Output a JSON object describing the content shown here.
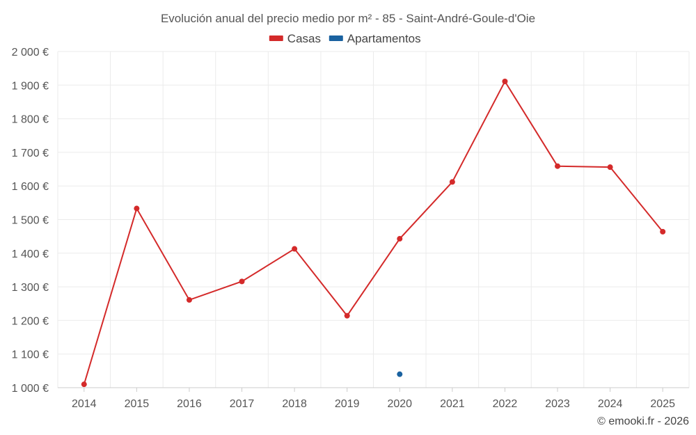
{
  "chart_data": {
    "type": "line",
    "title": "Evolución anual del precio medio por m² - 85 - Saint-André-Goule-d'Oie",
    "xlabel": "",
    "ylabel": "",
    "categories": [
      "2014",
      "2015",
      "2016",
      "2017",
      "2018",
      "2019",
      "2020",
      "2021",
      "2022",
      "2023",
      "2024",
      "2025"
    ],
    "ylim": [
      1000,
      2000
    ],
    "yticks": [
      1000,
      1100,
      1200,
      1300,
      1400,
      1500,
      1600,
      1700,
      1800,
      1900,
      2000
    ],
    "ytick_labels": [
      "1 000 €",
      "1 100 €",
      "1 200 €",
      "1 300 €",
      "1 400 €",
      "1 500 €",
      "1 600 €",
      "1 700 €",
      "1 800 €",
      "1 900 €",
      "2 000 €"
    ],
    "grid": true,
    "legend_position": "top-center",
    "series": [
      {
        "name": "Casas",
        "color": "#d42a2a",
        "values": [
          1010,
          1533,
          1261,
          1316,
          1413,
          1214,
          1443,
          1612,
          1911,
          1659,
          1656,
          1464
        ]
      },
      {
        "name": "Apartamentos",
        "color": "#1a62a0",
        "values": [
          null,
          null,
          null,
          null,
          null,
          null,
          1040,
          null,
          null,
          null,
          null,
          null
        ]
      }
    ]
  },
  "credit": "© emooki.fr - 2026"
}
